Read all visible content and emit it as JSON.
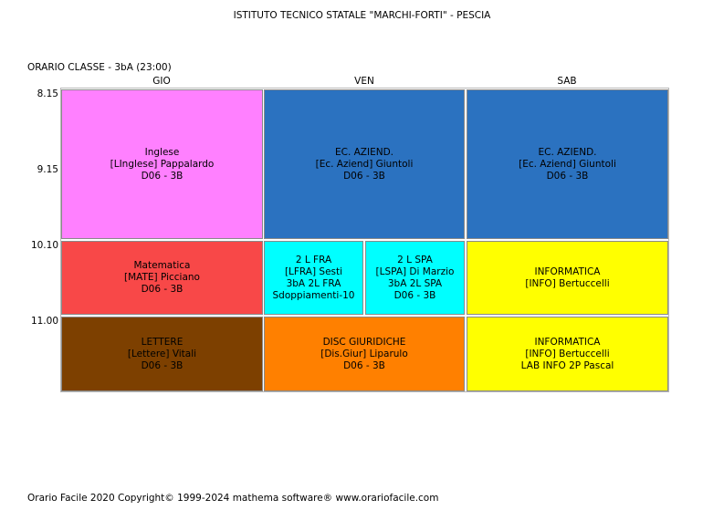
{
  "header": {
    "school": "ISTITUTO TECNICO STATALE \"MARCHI-FORTI\" - PESCIA",
    "class_label": "ORARIO CLASSE   -   3bA  (23:00)"
  },
  "days": [
    "GIO",
    "VEN",
    "SAB"
  ],
  "times": [
    "8.15",
    "9.15",
    "10.10",
    "11.00"
  ],
  "lessons": [
    {
      "lines": [
        "Inglese",
        "[LInglese] Pappalardo",
        "D06 - 3B"
      ],
      "color": "#ff80ff"
    },
    {
      "lines": [
        "EC. AZIEND.",
        "[Ec. Aziend] Giuntoli",
        "D06 - 3B"
      ],
      "color": "#2b72c0"
    },
    {
      "lines": [
        "EC. AZIEND.",
        "[Ec. Aziend] Giuntoli",
        "D06 - 3B"
      ],
      "color": "#2b72c0"
    },
    {
      "lines": [
        "Matematica",
        "[MATE] Picciano",
        "D06 - 3B"
      ],
      "color": "#f84848"
    },
    {
      "lines": [
        "2 L FRA",
        "[LFRA] Sesti",
        "3bA 2L FRA",
        "Sdoppiamenti-10"
      ],
      "color": "#00ffff"
    },
    {
      "lines": [
        "2 L SPA",
        "[LSPA] Di Marzio",
        "3bA 2L SPA",
        "D06 - 3B"
      ],
      "color": "#00ffff"
    },
    {
      "lines": [
        "INFORMATICA",
        "[INFO] Bertuccelli"
      ],
      "color": "#ffff00"
    },
    {
      "lines": [
        "LETTERE",
        "[Lettere] Vitali",
        "D06 - 3B"
      ],
      "color": "#7d4000"
    },
    {
      "lines": [
        "DISC GIURIDICHE",
        "[Dis.Giur] Liparulo",
        "D06 - 3B"
      ],
      "color": "#ff8000"
    },
    {
      "lines": [
        "INFORMATICA",
        "[INFO] Bertuccelli",
        "LAB INFO 2P Pascal"
      ],
      "color": "#ffff00"
    }
  ],
  "footer": "Orario Facile 2020  Copyright© 1999-2024 mathema software®     www.orariofacile.com"
}
